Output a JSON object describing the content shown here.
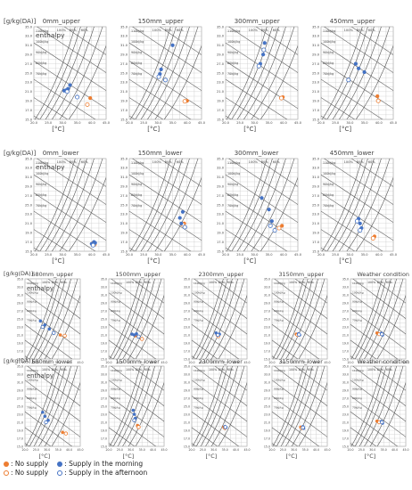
{
  "figure": {
    "y_unit": "[g/kg(DA)]",
    "enthalpy_label": "enthalpy",
    "x_unit": "[°C]",
    "colors": {
      "no_supply": "#ed7d31",
      "supply": "#4472c4",
      "curve": "#555555",
      "grid": "#c8c8c8"
    }
  },
  "chart_data": [
    {
      "group": "top",
      "type": "scatter",
      "xlim": [
        20,
        45
      ],
      "ylim": [
        15,
        35
      ],
      "x_ticks": [
        "20.0",
        "25.0",
        "30.0",
        "35.0",
        "40.0",
        "45.0"
      ],
      "y_ticks": [
        "15.0",
        "17.0",
        "19.0",
        "21.0",
        "23.0",
        "25.0",
        "27.0",
        "29.0",
        "31.0",
        "33.0",
        "35.0"
      ],
      "rh_labels": [
        "100%",
        "80%",
        "60%"
      ],
      "enthalpy_labels": [
        "110kJ/kg",
        "100kJ/kg",
        "90kJ/kg",
        "80kJ/kg",
        "70kJ/kg"
      ],
      "panels": [
        {
          "title": "0mm_upper",
          "row": 0,
          "col": 0,
          "no_supply_am": [
            [
              39.5,
              19.6
            ]
          ],
          "no_supply_pm": [
            [
              38.5,
              18.2
            ]
          ],
          "supply_am": [
            [
              30.5,
              21.2
            ],
            [
              32.5,
              22.4
            ],
            [
              31.8,
              21.6
            ],
            [
              31.2,
              21.3
            ]
          ],
          "supply_pm": [
            [
              35.0,
              19.8
            ],
            [
              31.5,
              21.0
            ]
          ]
        },
        {
          "title": "150mm_upper",
          "row": 0,
          "col": 1,
          "no_supply_am": [
            [
              40.0,
              19.0
            ]
          ],
          "no_supply_pm": [
            [
              39.2,
              18.9
            ]
          ],
          "supply_am": [
            [
              35.0,
              31.0
            ],
            [
              31.0,
              25.8
            ],
            [
              30.6,
              24.8
            ]
          ],
          "supply_pm": [
            [
              30.2,
              24.2
            ],
            [
              32.5,
              23.5
            ]
          ]
        },
        {
          "title": "300mm_upper",
          "row": 0,
          "col": 2,
          "no_supply_am": [
            [
              39.8,
              19.8
            ]
          ],
          "no_supply_pm": [
            [
              39.3,
              19.6
            ]
          ],
          "supply_am": [
            [
              33.5,
              31.5
            ],
            [
              33.0,
              29.0
            ],
            [
              32.0,
              27.0
            ]
          ],
          "supply_pm": [
            [
              33.2,
              30.0
            ],
            [
              31.5,
              26.5
            ]
          ]
        },
        {
          "title": "450mm_upper",
          "row": 0,
          "col": 3,
          "no_supply_am": [
            [
              39.5,
              20.0
            ]
          ],
          "no_supply_pm": [
            [
              39.8,
              19.0
            ]
          ],
          "supply_am": [
            [
              32.0,
              27.0
            ],
            [
              35.0,
              25.2
            ],
            [
              33.0,
              26.0
            ]
          ],
          "supply_pm": [
            [
              29.5,
              23.5
            ]
          ]
        },
        {
          "title": "0mm_lower",
          "row": 1,
          "col": 0,
          "no_supply_am": [
            [
              40.5,
              16.8
            ]
          ],
          "no_supply_pm": [
            [
              41.0,
              16.5
            ]
          ],
          "supply_am": [
            [
              40.0,
              16.6
            ],
            [
              40.8,
              17.0
            ],
            [
              41.2,
              16.8
            ]
          ],
          "supply_pm": [
            [
              40.5,
              16.3
            ]
          ]
        },
        {
          "title": "150mm_lower",
          "row": 1,
          "col": 1,
          "no_supply_am": [
            [
              39.0,
              21.0
            ]
          ],
          "no_supply_pm": [
            [
              38.5,
              20.8
            ]
          ],
          "supply_am": [
            [
              37.5,
              22.2
            ],
            [
              38.5,
              23.5
            ],
            [
              38.0,
              21.0
            ]
          ],
          "supply_pm": [
            [
              39.2,
              20.2
            ]
          ]
        },
        {
          "title": "300mm_lower",
          "row": 1,
          "col": 2,
          "no_supply_am": [
            [
              39.5,
              20.5
            ]
          ],
          "no_supply_pm": [
            [
              38.5,
              20.0
            ]
          ],
          "supply_am": [
            [
              32.5,
              26.5
            ],
            [
              35.0,
              24.0
            ],
            [
              36.0,
              21.5
            ]
          ],
          "supply_pm": [
            [
              35.5,
              20.5
            ],
            [
              37.0,
              19.5
            ]
          ]
        },
        {
          "title": "450mm_lower",
          "row": 1,
          "col": 3,
          "no_supply_am": [
            [
              38.5,
              18.2
            ]
          ],
          "no_supply_pm": [
            [
              38.0,
              17.8
            ]
          ],
          "supply_am": [
            [
              33.0,
              22.0
            ],
            [
              33.5,
              21.0
            ],
            [
              34.0,
              20.0
            ]
          ],
          "supply_pm": [
            [
              33.5,
              19.5
            ],
            [
              32.5,
              21.5
            ]
          ]
        }
      ]
    },
    {
      "group": "bottom",
      "type": "scatter",
      "xlim": [
        20,
        45
      ],
      "ylim": [
        15,
        35
      ],
      "x_ticks": [
        "20.0",
        "25.0",
        "30.0",
        "35.0",
        "40.0",
        "45.0"
      ],
      "y_ticks": [
        "15.0",
        "17.0",
        "19.0",
        "21.0",
        "23.0",
        "25.0",
        "27.0",
        "29.0",
        "31.0",
        "33.0",
        "35.0"
      ],
      "rh_labels": [
        "100%",
        "80%",
        "60%"
      ],
      "enthalpy_labels": [
        "110kJ/kg",
        "100kJ/kg",
        "90kJ/kg",
        "80kJ/kg",
        "70kJ/kg"
      ],
      "panels": [
        {
          "title": "680mm_upper",
          "row": 0,
          "col": 0,
          "no_supply_am": [
            [
              36.0,
              21.0
            ]
          ],
          "no_supply_pm": [
            [
              38.0,
              20.8
            ]
          ],
          "supply_am": [
            [
              27.0,
              24.5
            ],
            [
              29.0,
              23.5
            ],
            [
              31.0,
              22.5
            ]
          ],
          "supply_pm": [
            [
              28.0,
              23.0
            ],
            [
              33.0,
              21.5
            ]
          ]
        },
        {
          "title": "1500mm_upper",
          "row": 0,
          "col": 1,
          "no_supply_am": [
            [
              32.0,
              20.8
            ]
          ],
          "no_supply_pm": [
            [
              35.0,
              20.0
            ]
          ],
          "supply_am": [
            [
              30.5,
              21.2
            ],
            [
              32.5,
              21.3
            ],
            [
              31.5,
              21.0
            ]
          ],
          "supply_pm": [
            [
              33.5,
              20.6
            ]
          ]
        },
        {
          "title": "2300mm_upper",
          "row": 0,
          "col": 2,
          "no_supply_am": [
            [
              31.5,
              21.0
            ]
          ],
          "no_supply_pm": [
            [
              32.0,
              20.7
            ]
          ],
          "supply_am": [
            [
              31.0,
              21.5
            ],
            [
              32.5,
              21.2
            ]
          ],
          "supply_pm": [
            [
              31.8,
              21.0
            ]
          ]
        },
        {
          "title": "3150mm_upper",
          "row": 0,
          "col": 3,
          "no_supply_am": [
            [
              31.0,
              21.2
            ]
          ],
          "no_supply_pm": [
            [
              31.5,
              21.0
            ]
          ],
          "supply_am": [
            [
              32.0,
              21.3
            ],
            [
              32.5,
              21.0
            ]
          ],
          "supply_pm": [
            [
              32.2,
              21.1
            ]
          ]
        },
        {
          "title": "Weather condition",
          "row": 0,
          "col": 4,
          "no_supply_am": [
            [
              32.0,
              21.5
            ]
          ],
          "no_supply_pm": [
            [
              33.0,
              21.2
            ]
          ],
          "supply_am": [
            [
              34.0,
              21.4
            ],
            [
              34.5,
              21.0
            ]
          ],
          "supply_pm": [
            [
              34.2,
              21.2
            ]
          ]
        },
        {
          "title": "680mm_lower",
          "row": 1,
          "col": 0,
          "no_supply_am": [
            [
              37.0,
              18.5
            ]
          ],
          "no_supply_pm": [
            [
              38.5,
              18.2
            ]
          ],
          "supply_am": [
            [
              28.0,
              23.5
            ],
            [
              29.0,
              22.5
            ],
            [
              30.5,
              21.5
            ]
          ],
          "supply_pm": [
            [
              29.5,
              21.0
            ]
          ]
        },
        {
          "title": "1500mm_lower",
          "row": 1,
          "col": 1,
          "no_supply_am": [
            [
              33.0,
              20.2
            ]
          ],
          "no_supply_pm": [
            [
              33.5,
              19.8
            ]
          ],
          "supply_am": [
            [
              31.0,
              24.0
            ],
            [
              31.5,
              23.0
            ],
            [
              32.0,
              22.0
            ]
          ],
          "supply_pm": [
            [
              31.5,
              21.5
            ]
          ]
        },
        {
          "title": "2300mm_lower",
          "row": 1,
          "col": 2,
          "no_supply_am": [
            [
              34.5,
              19.8
            ]
          ],
          "no_supply_pm": [
            [
              35.0,
              19.6
            ]
          ],
          "supply_am": [
            [
              35.0,
              19.9
            ],
            [
              35.5,
              19.7
            ]
          ],
          "supply_pm": [
            [
              35.2,
              19.8
            ]
          ]
        },
        {
          "title": "3150mm_lower",
          "row": 1,
          "col": 3,
          "no_supply_am": [
            [
              33.0,
              19.8
            ]
          ],
          "no_supply_pm": [
            [
              33.5,
              19.6
            ]
          ],
          "supply_am": [
            [
              34.0,
              19.9
            ],
            [
              34.3,
              19.5
            ]
          ],
          "supply_pm": [
            [
              34.0,
              19.7
            ]
          ]
        },
        {
          "title": "Weather condition",
          "row": 1,
          "col": 4,
          "no_supply_am": [
            [
              32.0,
              21.3
            ]
          ],
          "no_supply_pm": [
            [
              33.0,
              21.0
            ]
          ],
          "supply_am": [
            [
              34.0,
              21.2
            ],
            [
              34.5,
              20.8
            ]
          ],
          "supply_pm": [
            [
              34.2,
              21.0
            ]
          ]
        }
      ]
    }
  ],
  "legend": {
    "no_supply_am": ": No supply",
    "supply_am": ": Supply in the morning",
    "no_supply_pm": ": No supply",
    "supply_pm": ": Supply in the afternoon"
  }
}
